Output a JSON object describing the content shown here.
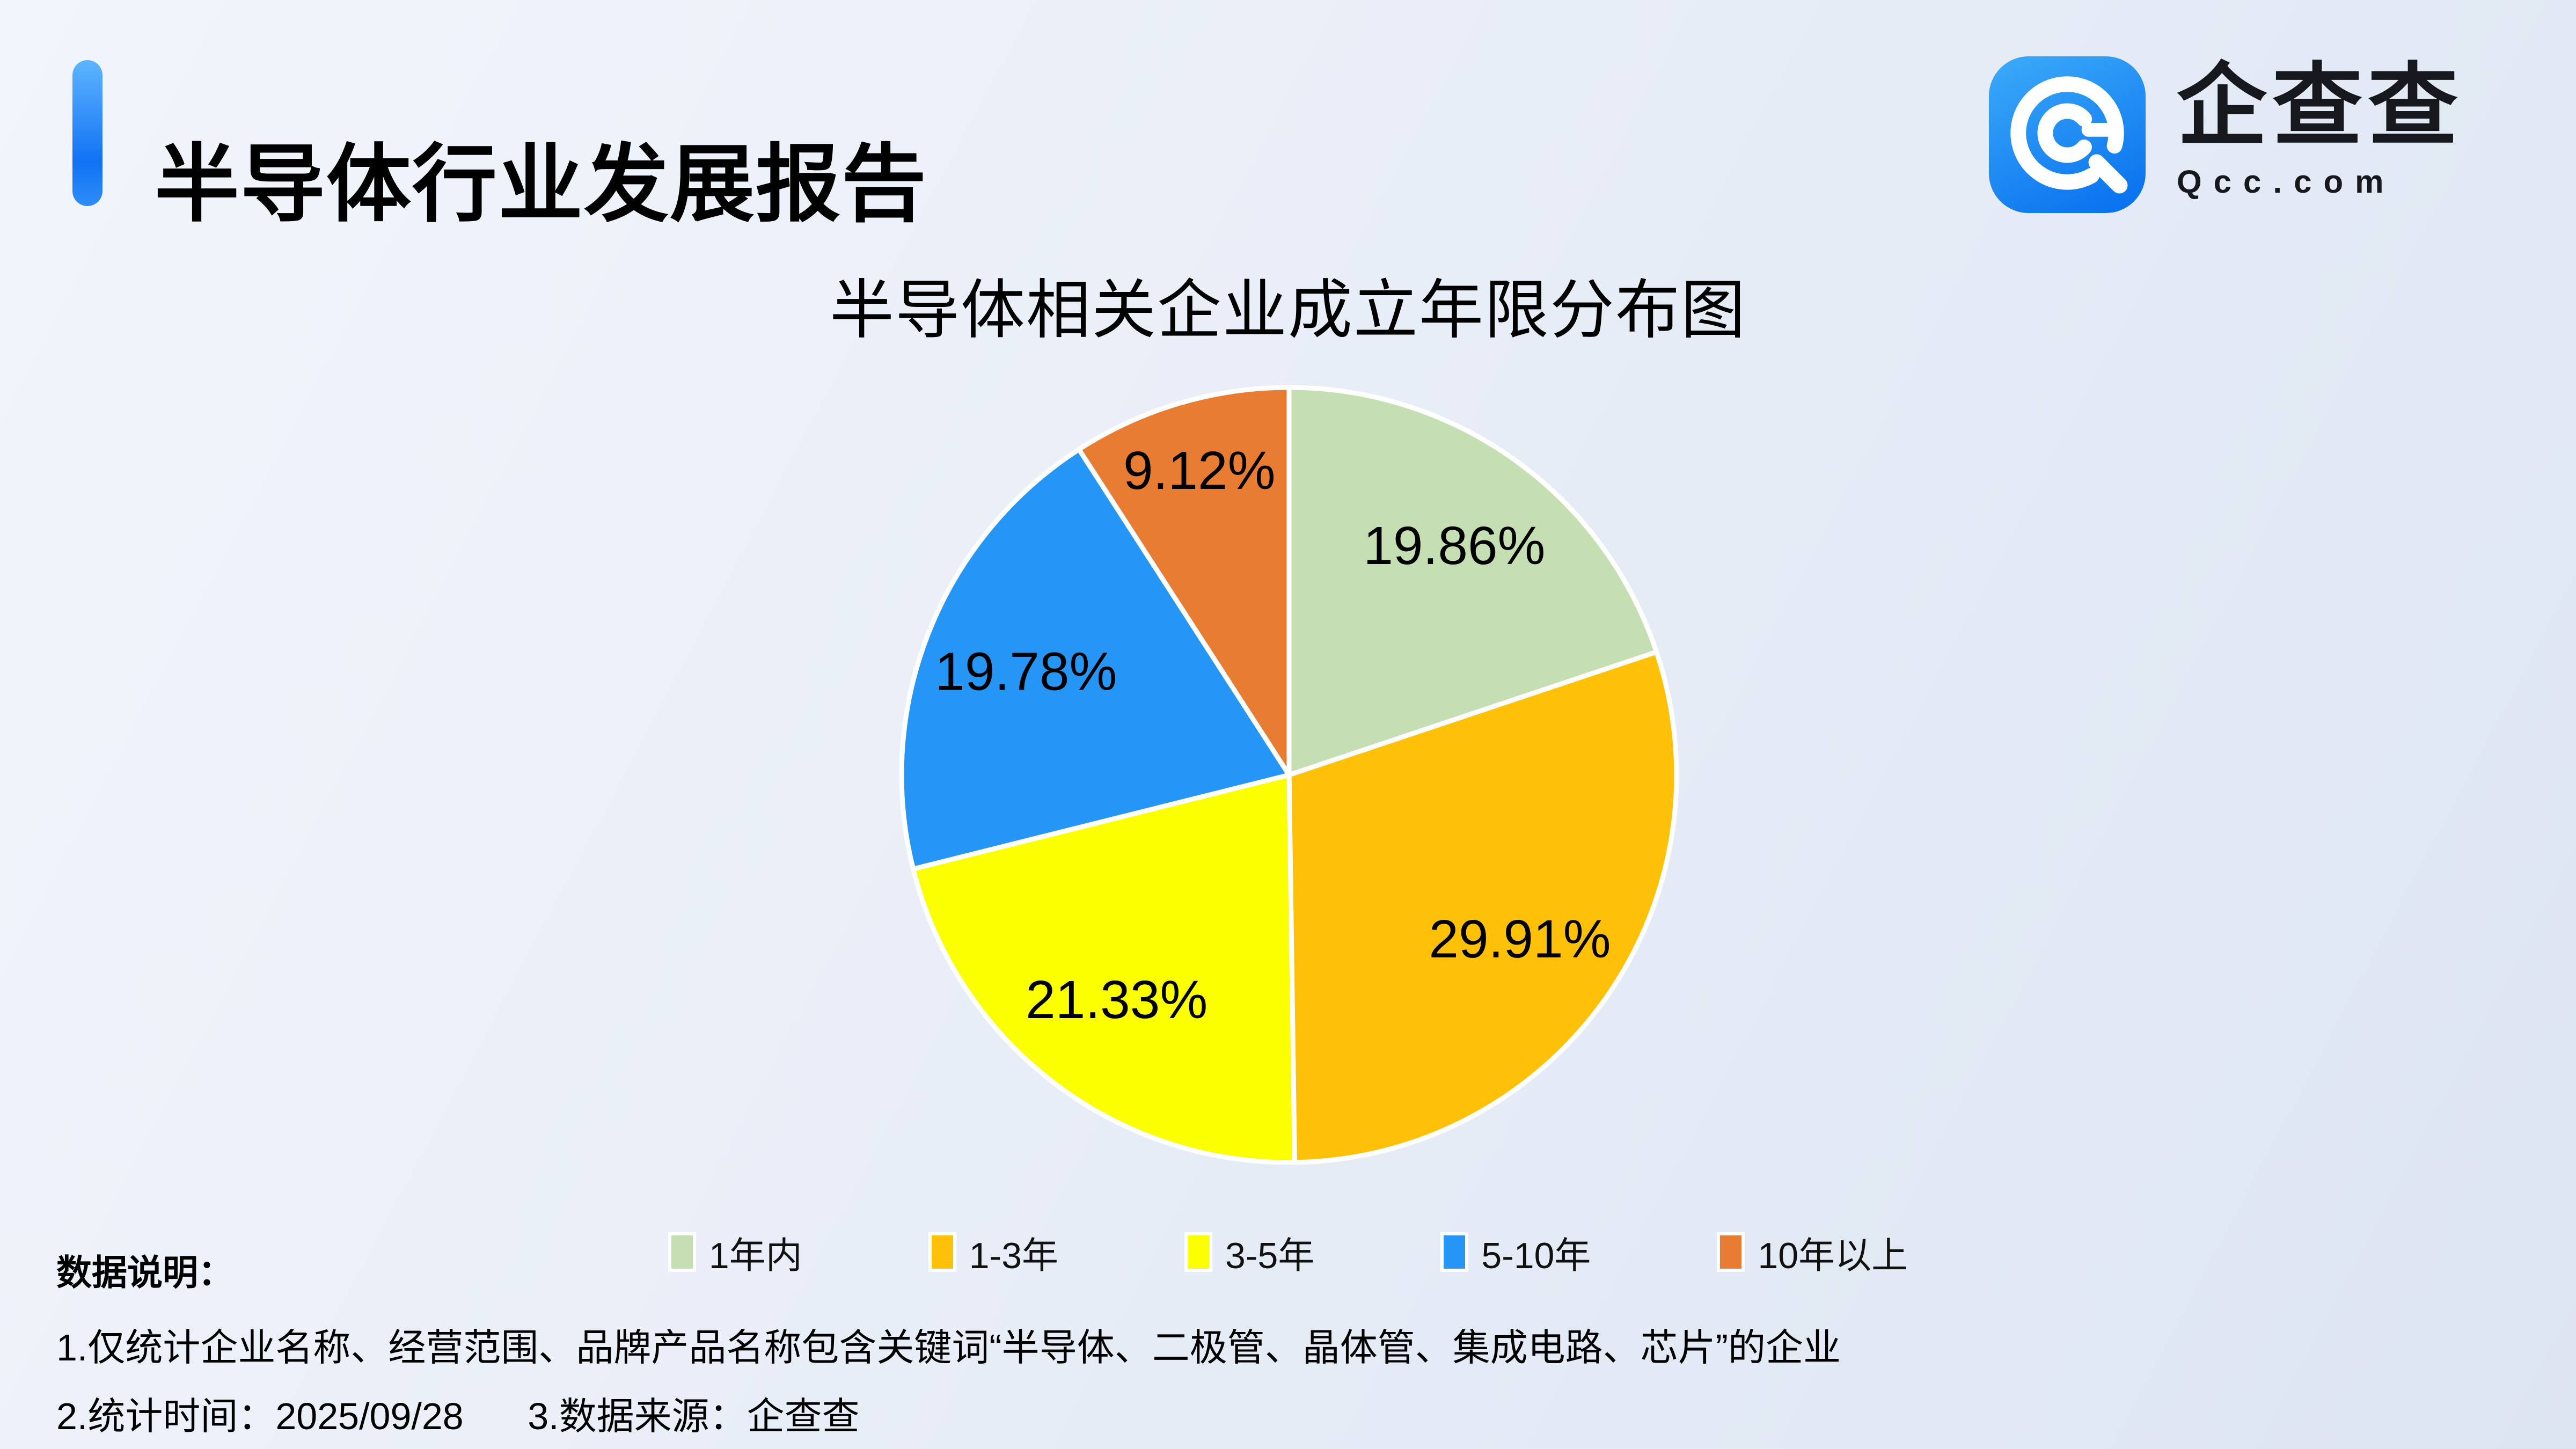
{
  "header": {
    "title": "半导体行业发展报告",
    "logo": {
      "brand": "企查查",
      "domain": "Qcc.com",
      "icon": "qcc-spiral-q-icon",
      "icon_color": "#1186f3"
    }
  },
  "chart_data": {
    "type": "pie",
    "title": "半导体相关企业成立年限分布图",
    "unit": "%",
    "start_angle_deg": 0,
    "direction": "clockwise",
    "legend_position": "bottom",
    "label_format": "percent_2dp",
    "slices": [
      {
        "label": "1年内",
        "value": 19.86,
        "color": "#c5deb2"
      },
      {
        "label": "1-3年",
        "value": 29.91,
        "color": "#ffc108"
      },
      {
        "label": "3-5年",
        "value": 21.33,
        "color": "#fcff00"
      },
      {
        "label": "5-10年",
        "value": 19.78,
        "color": "#2596f5"
      },
      {
        "label": "10年以上",
        "value": 9.12,
        "color": "#e87c33"
      }
    ]
  },
  "notes": {
    "heading": "数据说明：",
    "line1": "1.仅统计企业名称、经营范围、品牌产品名称包含关键词“半导体、二极管、晶体管、集成电路、芯片”的企业",
    "line2_time": "2.统计时间：2025/09/28",
    "line2_source": "3.数据来源：企查查"
  },
  "colors": {
    "accent_bar": "#1172f4",
    "background": "#e9eef7",
    "text": "#000000",
    "slice_border": "#ffffff"
  }
}
